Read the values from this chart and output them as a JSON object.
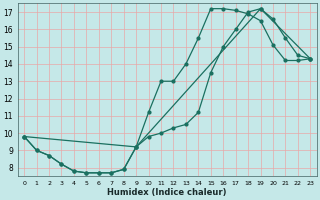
{
  "xlabel": "Humidex (Indice chaleur)",
  "background_color": "#c5e8e8",
  "grid_color": "#e8a8a8",
  "line_color": "#1a7060",
  "xlim": [
    -0.5,
    23.5
  ],
  "ylim": [
    7.5,
    17.5
  ],
  "xticks": [
    0,
    1,
    2,
    3,
    4,
    5,
    6,
    7,
    8,
    9,
    10,
    11,
    12,
    13,
    14,
    15,
    16,
    17,
    18,
    19,
    20,
    21,
    22,
    23
  ],
  "yticks": [
    8,
    9,
    10,
    11,
    12,
    13,
    14,
    15,
    16,
    17
  ],
  "line1_x": [
    0,
    1,
    2,
    3,
    4,
    5,
    6,
    7,
    8,
    9,
    10,
    11,
    12,
    13,
    14,
    15,
    16,
    17,
    18,
    19,
    20,
    21,
    22,
    23
  ],
  "line1_y": [
    9.8,
    9.0,
    8.7,
    8.2,
    7.8,
    7.7,
    7.7,
    7.7,
    7.9,
    9.2,
    11.2,
    13.0,
    13.0,
    14.0,
    15.5,
    17.2,
    17.2,
    17.1,
    16.9,
    16.5,
    15.1,
    14.2,
    14.2,
    14.3
  ],
  "line2_x": [
    0,
    1,
    2,
    3,
    4,
    5,
    6,
    7,
    8,
    9,
    10,
    11,
    12,
    13,
    14,
    15,
    16,
    17,
    18,
    19,
    20,
    21,
    22,
    23
  ],
  "line2_y": [
    9.8,
    9.0,
    8.7,
    8.2,
    7.8,
    7.7,
    7.7,
    7.7,
    7.9,
    9.2,
    9.8,
    10.0,
    10.3,
    10.5,
    11.2,
    13.5,
    15.0,
    16.0,
    17.0,
    17.2,
    16.6,
    15.5,
    14.5,
    14.3
  ],
  "line3_x": [
    0,
    9,
    19,
    23
  ],
  "line3_y": [
    9.8,
    9.2,
    17.2,
    14.3
  ],
  "marker_size": 2.0,
  "line_width": 0.9
}
